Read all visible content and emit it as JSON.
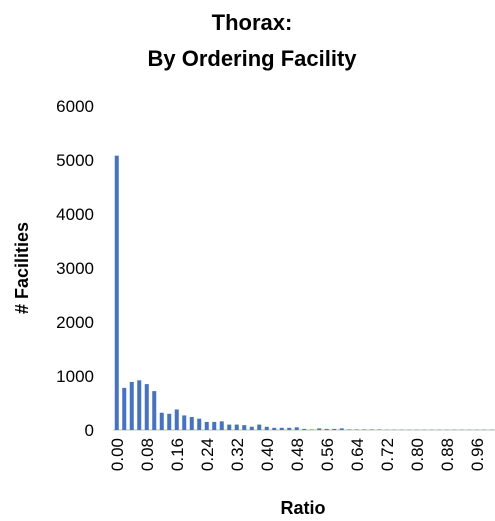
{
  "chart_data": {
    "type": "bar",
    "title_lines": [
      "Thorax:",
      "By Ordering Facility"
    ],
    "x_label": "Ratio",
    "y_label": "# Facilities",
    "categories": [
      "0.00",
      null,
      null,
      null,
      "0.08",
      null,
      null,
      null,
      "0.16",
      null,
      null,
      null,
      "0.24",
      null,
      null,
      null,
      "0.32",
      null,
      null,
      null,
      "0.40",
      null,
      null,
      null,
      "0.48",
      null,
      null,
      null,
      "0.56",
      null,
      null,
      null,
      "0.64",
      null,
      null,
      null,
      "0.72",
      null,
      null,
      null,
      "0.80",
      null,
      null,
      null,
      "0.88",
      null,
      null,
      null,
      "0.96",
      null,
      null
    ],
    "values": [
      5080,
      780,
      890,
      920,
      850,
      720,
      320,
      300,
      380,
      270,
      240,
      210,
      150,
      150,
      160,
      100,
      100,
      90,
      60,
      100,
      60,
      40,
      40,
      40,
      50,
      20,
      10,
      30,
      20,
      20,
      30,
      10,
      10,
      10,
      10,
      10,
      5,
      5,
      5,
      5,
      5,
      5,
      5,
      5,
      5,
      5,
      5,
      5,
      5,
      5,
      5
    ],
    "color": "#4472c4",
    "ylim": [
      0,
      6000
    ],
    "yticks": [
      0,
      1000,
      2000,
      3000,
      4000,
      5000,
      6000
    ],
    "grid": false
  }
}
